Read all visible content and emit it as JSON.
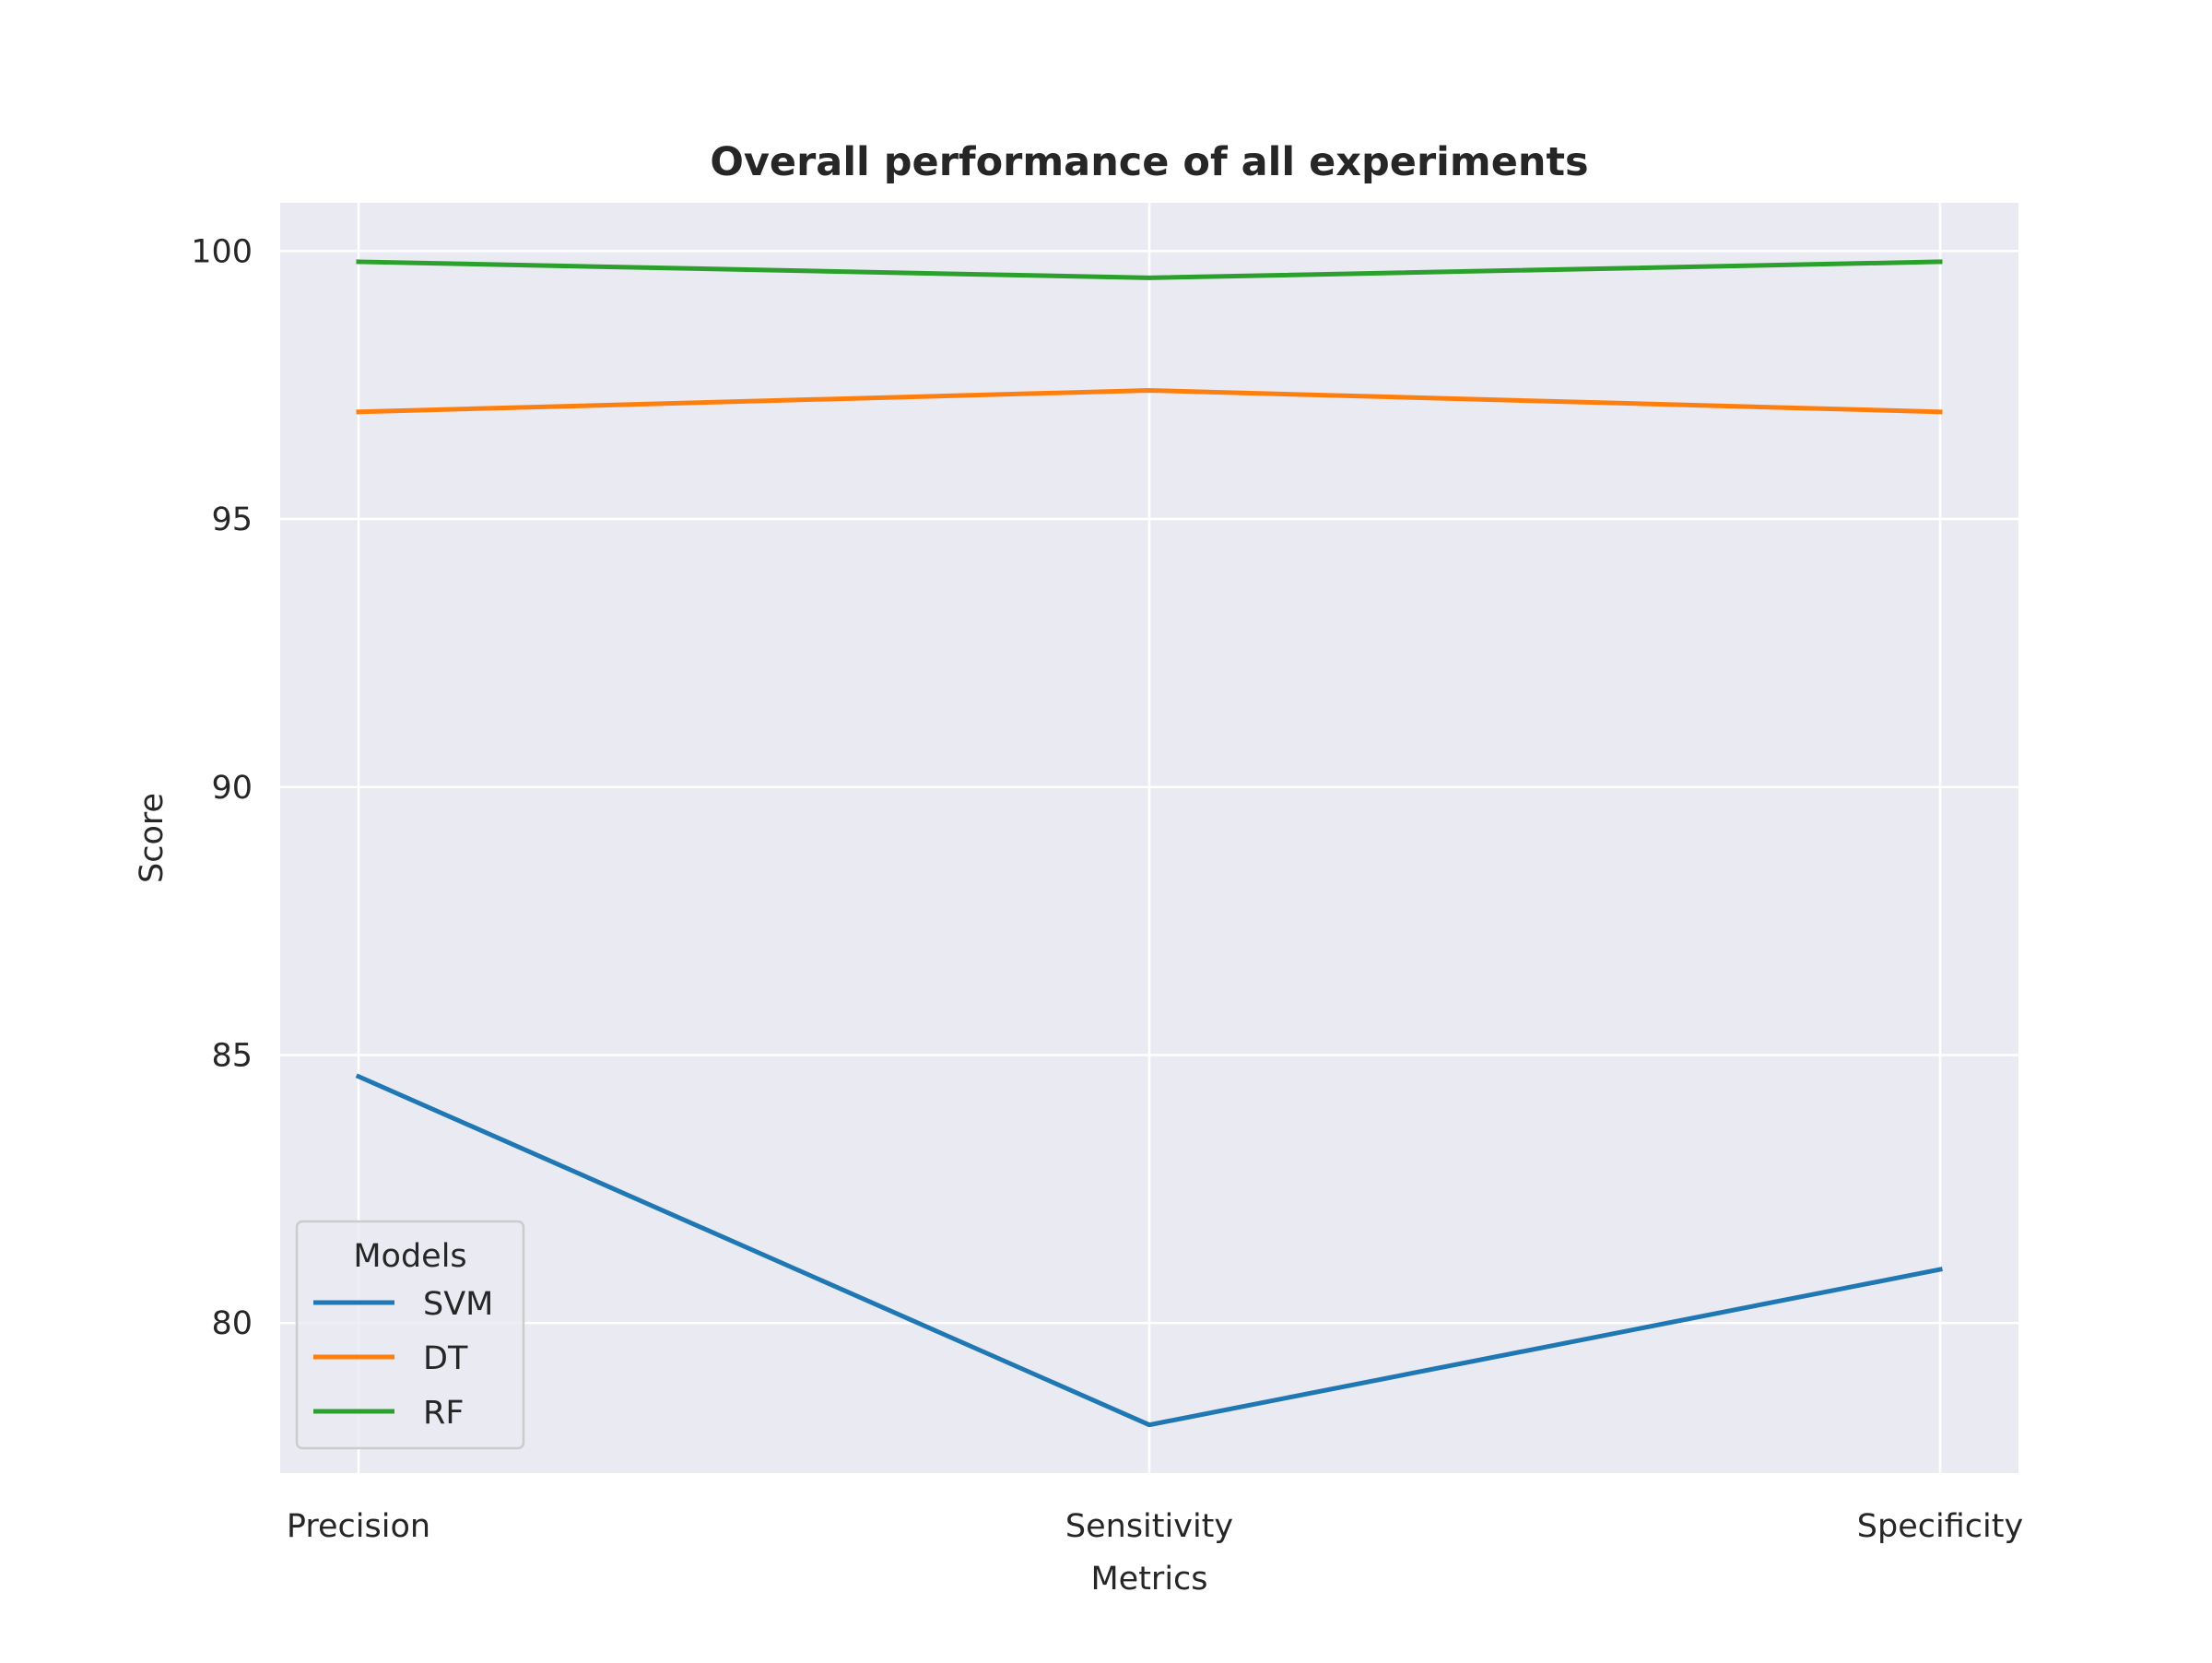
{
  "chart_data": {
    "type": "line",
    "title": "Overall performance of all experiments",
    "xlabel": "Metrics",
    "ylabel": "Score",
    "categories": [
      "Precision",
      "Sensitivity",
      "Specificity"
    ],
    "ylim": [
      77.2,
      100.9
    ],
    "yticks": [
      80,
      85,
      90,
      95,
      100
    ],
    "grid": true,
    "legend": {
      "title": "Models",
      "placement": "lower-left"
    },
    "series": [
      {
        "name": "SVM",
        "values": [
          84.6,
          78.1,
          81.0
        ],
        "color": "#1f77b4"
      },
      {
        "name": "DT",
        "values": [
          97.0,
          97.4,
          97.0
        ],
        "color": "#ff7f0e"
      },
      {
        "name": "RF",
        "values": [
          99.8,
          99.5,
          99.8
        ],
        "color": "#2ca02c"
      }
    ],
    "background": "#eaeaf2",
    "grid_color": "#ffffff"
  }
}
